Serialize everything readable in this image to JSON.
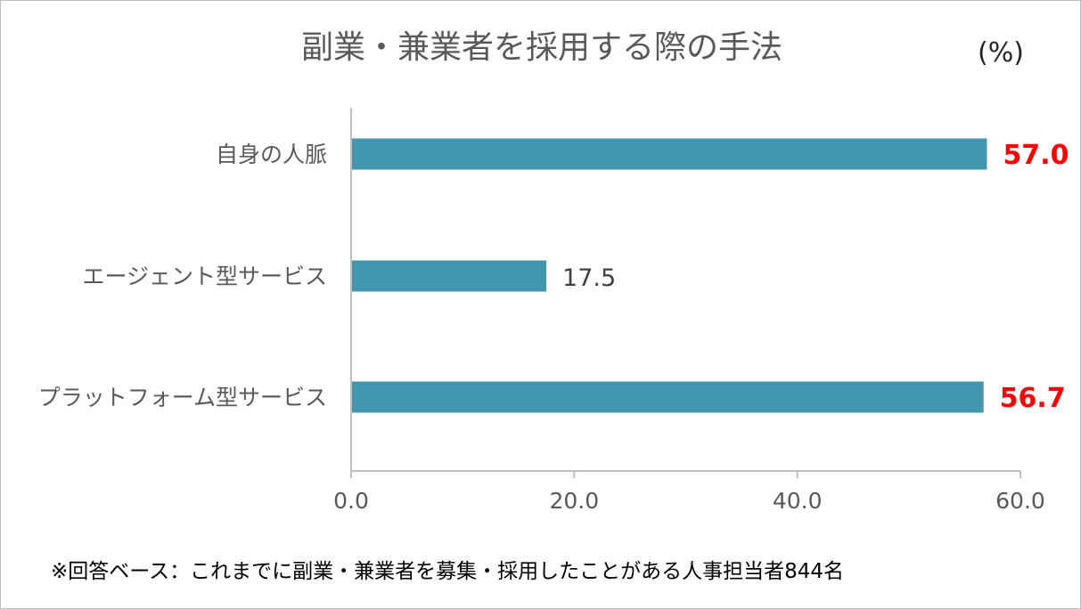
{
  "chart_data": {
    "type": "bar",
    "orientation": "horizontal",
    "title": "副業・兼業者を採用する際の手法",
    "unit_label": "(%)",
    "categories": [
      "自身の人脈",
      "エージェント型サービス",
      "プラットフォーム型サービス"
    ],
    "values": [
      57.0,
      17.5,
      56.7
    ],
    "value_labels": [
      "57.0",
      "17.5",
      "56.7"
    ],
    "highlighted": [
      true,
      false,
      true
    ],
    "xlim": [
      0,
      60
    ],
    "x_ticks": [
      "0.0",
      "20.0",
      "40.0",
      "60.0"
    ],
    "x_tick_values": [
      0,
      20,
      40,
      60
    ],
    "grid": false,
    "legend": "none",
    "footnote": "※回答ベース：これまでに副業・兼業者を募集・採用したことがある人事担当者844名"
  },
  "colors": {
    "bar": "#4297ae",
    "highlight_label": "#ff0000",
    "normal_label": "#404040",
    "axis": "#bfbfbf"
  }
}
